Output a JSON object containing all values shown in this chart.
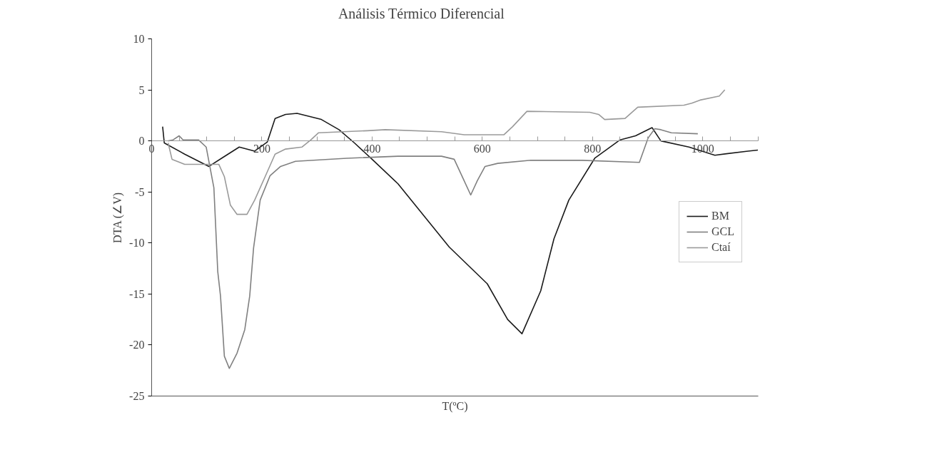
{
  "chart_data": {
    "type": "line",
    "title": "Análisis Térmico Diferencial",
    "xlabel": "T(ºC)",
    "ylabel": "DTA (∠V)",
    "xlim": [
      0,
      1100
    ],
    "ylim": [
      -25,
      10
    ],
    "xticks": [
      0,
      {
        "value": 50,
        "label": null
      },
      {
        "value": 100,
        "label": null
      },
      {
        "value": 150,
        "label": null
      },
      200,
      {
        "value": 250,
        "label": null
      },
      {
        "value": 300,
        "label": null
      },
      {
        "value": 350,
        "label": null
      },
      400,
      {
        "value": 450,
        "label": null
      },
      {
        "value": 500,
        "label": null
      },
      {
        "value": 550,
        "label": null
      },
      600,
      {
        "value": 650,
        "label": null
      },
      {
        "value": 700,
        "label": null
      },
      {
        "value": 750,
        "label": null
      },
      800,
      {
        "value": 850,
        "label": null
      },
      {
        "value": 900,
        "label": null
      },
      {
        "value": 950,
        "label": null
      },
      1000,
      {
        "value": 1050,
        "label": null
      },
      {
        "value": 1100,
        "label": null
      }
    ],
    "yticks": [
      -25,
      -20,
      -15,
      -10,
      -5,
      0,
      5,
      10
    ],
    "grid": false,
    "legend": "right",
    "marker": "none",
    "line_style": "solid",
    "series": [
      {
        "name": "BM",
        "color": "#1a1a1a",
        "x": [
          20,
          23,
          60,
          104,
          130,
          159,
          187,
          210,
          224,
          243,
          264,
          308,
          340,
          368,
          400,
          447,
          540,
          609,
          646,
          672,
          706,
          730,
          757,
          804,
          850,
          878,
          908,
          924,
          975,
          1022,
          1082,
          1100
        ],
        "values": [
          1.4,
          -0.2,
          -1.3,
          -2.5,
          -1.6,
          -0.6,
          -1.0,
          -0.1,
          2.2,
          2.6,
          2.7,
          2.1,
          1.1,
          -0.2,
          -1.8,
          -4.2,
          -10.4,
          -14.0,
          -17.5,
          -18.9,
          -14.7,
          -9.6,
          -5.8,
          -1.7,
          0.1,
          0.5,
          1.3,
          0.0,
          -0.6,
          -1.4,
          -1.0,
          -0.9
        ]
      },
      {
        "name": "GCL",
        "color": "#808080",
        "x": [
          30,
          39,
          50,
          57,
          85,
          99,
          113,
          120,
          125,
          132,
          141,
          155,
          169,
          178,
          185,
          197,
          215,
          234,
          261,
          354,
          447,
          526,
          549,
          567,
          579,
          591,
          605,
          628,
          688,
          781,
          885,
          901,
          913,
          924,
          943,
          991
        ],
        "values": [
          0.0,
          0.1,
          0.5,
          0.1,
          0.1,
          -0.6,
          -4.6,
          -12.8,
          -15.2,
          -21.1,
          -22.3,
          -20.8,
          -18.5,
          -15.2,
          -10.5,
          -5.8,
          -3.4,
          -2.5,
          -2.0,
          -1.7,
          -1.5,
          -1.5,
          -1.8,
          -3.9,
          -5.3,
          -3.9,
          -2.5,
          -2.2,
          -1.9,
          -1.9,
          -2.1,
          0.3,
          1.2,
          1.1,
          0.8,
          0.7
        ]
      },
      {
        "name": "Ctaí",
        "color": "#9a9a9a",
        "x": [
          30,
          37,
          60,
          122,
          132,
          143,
          155,
          173,
          187,
          206,
          224,
          243,
          273,
          289,
          303,
          391,
          424,
          526,
          567,
          639,
          655,
          681,
          795,
          811,
          822,
          859,
          882,
          966,
          980,
          995,
          1030,
          1040
        ],
        "values": [
          -0.2,
          -1.8,
          -2.3,
          -2.3,
          -3.5,
          -6.3,
          -7.2,
          -7.2,
          -5.8,
          -3.5,
          -1.3,
          -0.8,
          -0.6,
          0.1,
          0.8,
          1.0,
          1.1,
          0.9,
          0.6,
          0.6,
          1.4,
          2.9,
          2.8,
          2.6,
          2.1,
          2.2,
          3.3,
          3.5,
          3.7,
          4.0,
          4.4,
          5.0
        ]
      }
    ]
  }
}
